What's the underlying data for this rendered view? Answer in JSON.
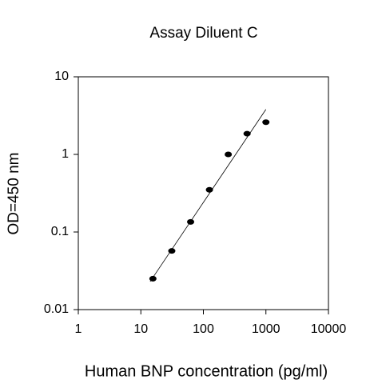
{
  "chart_data": {
    "type": "scatter",
    "title": "Assay Diluent C",
    "x_label": "Human BNP concentration (pg/ml)",
    "y_label": "OD=450 nm",
    "x": [
      15.6,
      31.25,
      62.5,
      125,
      250,
      500,
      1000
    ],
    "values": [
      0.025,
      0.057,
      0.135,
      0.35,
      1.0,
      1.85,
      2.6
    ],
    "color": "#000000",
    "trendline": {
      "x": [
        14.1,
        1000
      ],
      "values": [
        0.023,
        3.8
      ]
    },
    "xlim": [
      1,
      10000
    ],
    "xticks": [
      1,
      10,
      100,
      1000,
      10000
    ],
    "ylim": [
      0.01,
      10
    ],
    "yticks": [
      0.01,
      0.1,
      1,
      10
    ],
    "x_log": true,
    "y_log": true,
    "grid": false
  }
}
